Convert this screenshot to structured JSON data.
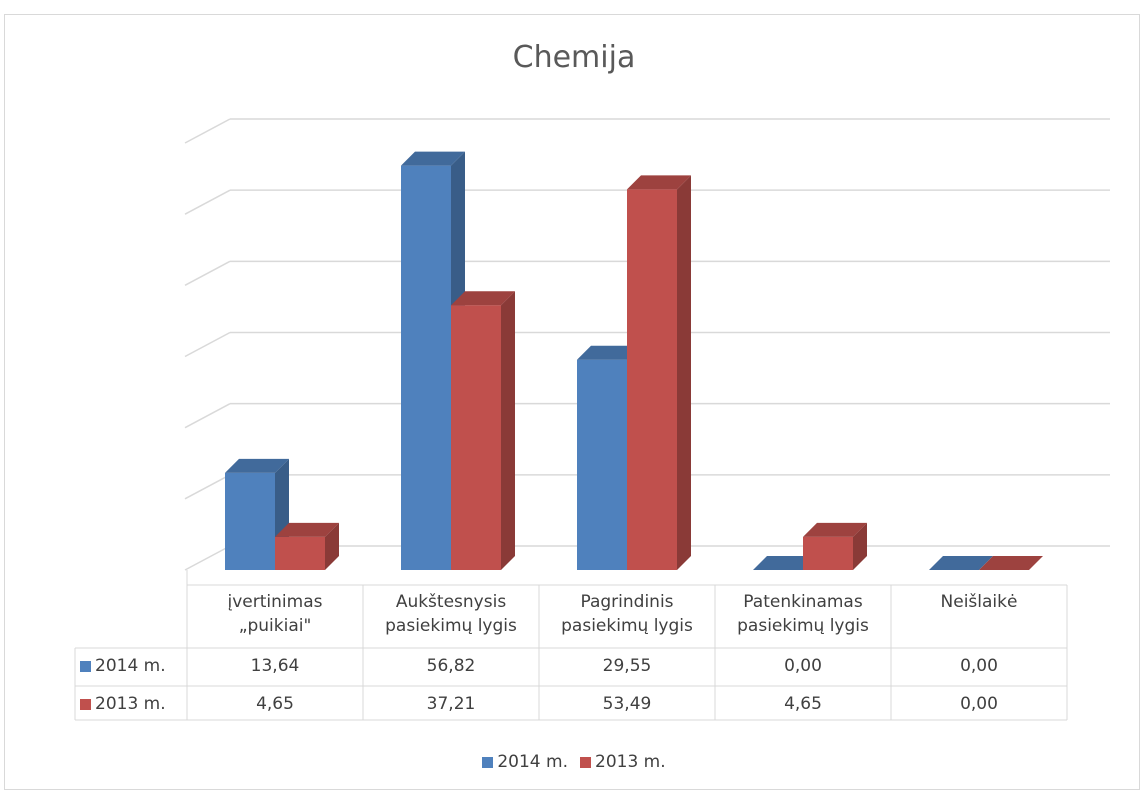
{
  "chart_data": {
    "type": "bar",
    "title": "Chemija",
    "categories": [
      "įvertinimas\n„puikiai\"",
      "Aukštesnysis\npasiekimų lygis",
      "Pagrindinis\npasiekimų lygis",
      "Patenkinamas\npasiekimų lygis",
      "Neišlaikė"
    ],
    "series": [
      {
        "name": "2014 m.",
        "values": [
          13.64,
          56.82,
          29.55,
          0.0,
          0.0
        ],
        "labels": [
          "13,64",
          "56,82",
          "29,55",
          "0,00",
          "0,00"
        ],
        "color": "#4f81bd"
      },
      {
        "name": "2013 m.",
        "values": [
          4.65,
          37.21,
          53.49,
          4.65,
          0.0
        ],
        "labels": [
          "4,65",
          "37,21",
          "53,49",
          "4,65",
          "0,00"
        ],
        "color": "#c0504d"
      }
    ],
    "ylim": [
      0,
      60
    ],
    "grid": true,
    "data_table": true,
    "legend": "bottom"
  }
}
